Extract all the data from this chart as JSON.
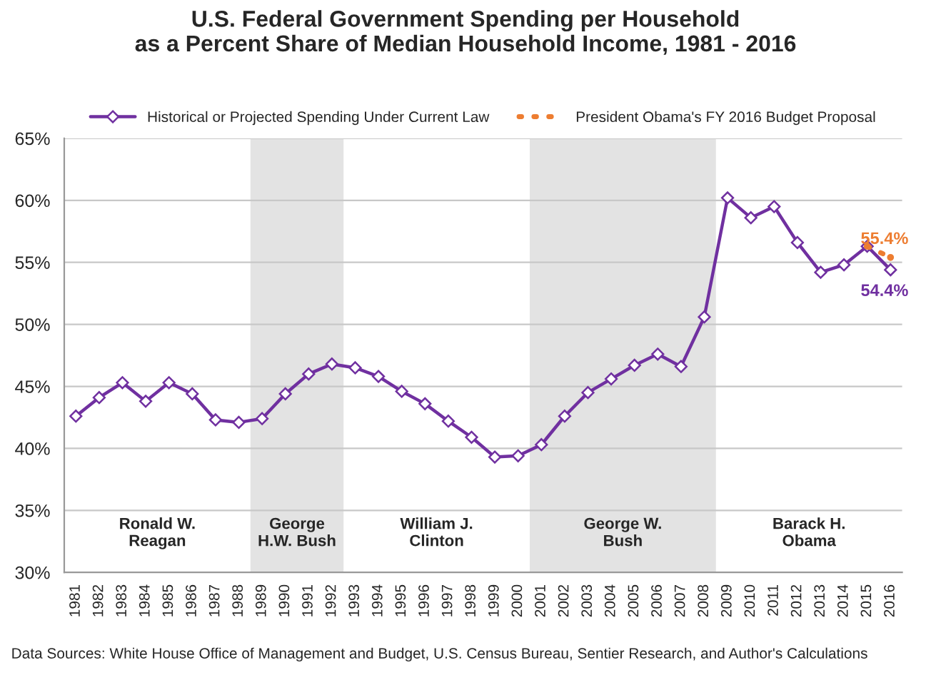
{
  "chart_data": {
    "type": "line",
    "title": "U.S. Federal Government Spending per Household\nas a Percent Share of Median Household Income, 1981 - 2016",
    "categories": [
      "1981",
      "1982",
      "1983",
      "1984",
      "1985",
      "1986",
      "1987",
      "1988",
      "1989",
      "1990",
      "1991",
      "1992",
      "1993",
      "1994",
      "1995",
      "1996",
      "1997",
      "1998",
      "1999",
      "2000",
      "2001",
      "2002",
      "2003",
      "2004",
      "2005",
      "2006",
      "2007",
      "2008",
      "2009",
      "2010",
      "2011",
      "2012",
      "2013",
      "2014",
      "2015",
      "2016"
    ],
    "series": [
      {
        "name": "Historical or Projected Spending Under Current Law",
        "color": "#7030a0",
        "marker": "diamond",
        "line_style": "solid",
        "values": [
          42.6,
          44.1,
          45.3,
          43.8,
          45.3,
          44.4,
          42.3,
          42.1,
          42.4,
          44.4,
          46.0,
          46.8,
          46.5,
          45.8,
          44.6,
          43.6,
          42.2,
          40.9,
          39.3,
          39.4,
          40.3,
          42.6,
          44.5,
          45.6,
          46.7,
          47.6,
          46.6,
          50.6,
          60.2,
          58.6,
          59.5,
          56.6,
          54.2,
          54.8,
          56.3,
          54.4
        ]
      },
      {
        "name": "President Obama's FY 2016 Budget Proposal",
        "color": "#ed7d31",
        "marker": "none",
        "line_style": "dotted",
        "values": [
          null,
          null,
          null,
          null,
          null,
          null,
          null,
          null,
          null,
          null,
          null,
          null,
          null,
          null,
          null,
          null,
          null,
          null,
          null,
          null,
          null,
          null,
          null,
          null,
          null,
          null,
          null,
          null,
          null,
          null,
          null,
          null,
          null,
          null,
          56.3,
          55.4
        ]
      }
    ],
    "ylim": [
      30,
      65
    ],
    "yticks": [
      {
        "value": 30,
        "label": "30%"
      },
      {
        "value": 35,
        "label": "35%"
      },
      {
        "value": 40,
        "label": "40%"
      },
      {
        "value": 45,
        "label": "45%"
      },
      {
        "value": 50,
        "label": "50%"
      },
      {
        "value": 55,
        "label": "55%"
      },
      {
        "value": 60,
        "label": "60%"
      },
      {
        "value": 65,
        "label": "65%"
      }
    ],
    "bands": [
      {
        "axis": "x",
        "from": "1989",
        "to": "1992",
        "label": "George\nH.W. Bush",
        "color": "#e3e3e3"
      },
      {
        "axis": "x",
        "from": "2001",
        "to": "2008",
        "label": "George W.\nBush",
        "color": "#e3e3e3"
      }
    ],
    "annotations": [
      {
        "text": "55.4%",
        "x": "2016",
        "y": 55.4
      },
      {
        "text": "54.4%",
        "x": "2016",
        "y": 54.4
      },
      "Ronald W.\nReagan",
      "William J.\nClinton",
      "Barack H.\nObama",
      "Data Sources: White House Office of Management and Budget, U.S. Census Bureau, Sentier Research, and Author's Calculations"
    ],
    "grid": "y",
    "legend": "top"
  }
}
